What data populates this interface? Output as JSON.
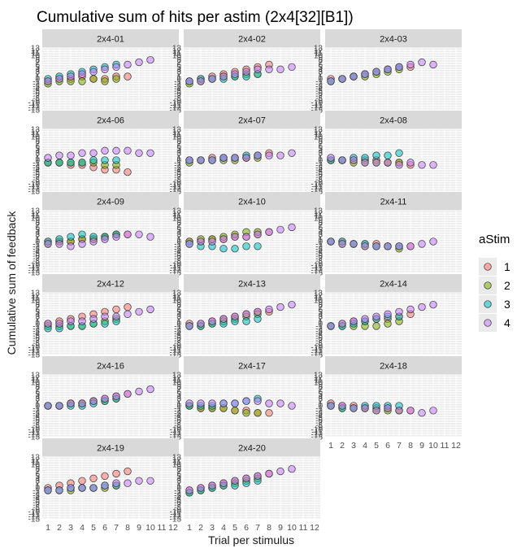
{
  "chart_data": {
    "type": "scatter",
    "title": "Cumulative sum of hits per astim (2x4[32][B1])",
    "xlabel": "Trial per stimulus",
    "ylabel": "Cumulative sum of feedback",
    "x_ticks": [
      "1",
      "2",
      "3",
      "4",
      "5",
      "6",
      "7",
      "8",
      "9",
      "10",
      "11",
      "12"
    ],
    "xlim": [
      0.5,
      12.5
    ],
    "ylim": [
      -13,
      13
    ],
    "y_ticks": [
      "-13",
      "-12",
      "-11",
      "-10",
      "-9",
      "-8",
      "-7",
      "-6",
      "-5",
      "-4",
      "-3",
      "-2",
      "-1",
      "0",
      "1",
      "2",
      "3",
      "4",
      "5",
      "6",
      "7",
      "8",
      "9",
      "10",
      "11",
      "12",
      "13"
    ],
    "legend": {
      "title": "aStim",
      "position": "right",
      "entries": [
        {
          "label": "1",
          "color": "#F8766D"
        },
        {
          "label": "2",
          "color": "#7CAE00"
        },
        {
          "label": "3",
          "color": "#00BFC4"
        },
        {
          "label": "4",
          "color": "#C77CFF"
        }
      ]
    },
    "facets": [
      {
        "label": "2x4-01",
        "series": [
          {
            "name": "1",
            "values": [
              -1,
              0,
              0,
              1,
              0,
              0,
              1,
              1
            ]
          },
          {
            "name": "2",
            "values": [
              -2,
              -1,
              -1,
              -1,
              0,
              -1,
              0
            ]
          },
          {
            "name": "3",
            "values": [
              0,
              1,
              2,
              3,
              4,
              5,
              6
            ]
          },
          {
            "name": "4",
            "values": [
              -1,
              0,
              1,
              2,
              3,
              4,
              5,
              6,
              7,
              8
            ]
          }
        ]
      },
      {
        "label": "2x4-02",
        "series": [
          {
            "name": "1",
            "values": [
              -1,
              0,
              1,
              2,
              3,
              4,
              5,
              6
            ]
          },
          {
            "name": "2",
            "values": [
              -2,
              -1,
              0,
              1,
              1,
              2,
              2
            ]
          },
          {
            "name": "3",
            "values": [
              -1,
              0,
              0,
              0,
              1,
              1,
              2
            ]
          },
          {
            "name": "4",
            "values": [
              -1,
              -1,
              0,
              1,
              2,
              3,
              4,
              4,
              4,
              5
            ]
          }
        ]
      },
      {
        "label": "2x4-03",
        "series": [
          {
            "name": "1",
            "values": [
              0,
              0,
              1,
              2,
              3,
              4,
              5,
              5
            ]
          },
          {
            "name": "2",
            "values": [
              -1,
              0,
              1,
              1,
              2,
              3,
              4
            ]
          },
          {
            "name": "3",
            "values": [
              -1,
              0,
              1,
              2,
              3,
              4,
              5
            ]
          },
          {
            "name": "4",
            "values": [
              -1,
              0,
              1,
              2,
              3,
              4,
              5,
              6,
              7,
              6
            ]
          }
        ]
      },
      {
        "label": "2x4-06",
        "series": [
          {
            "name": "1",
            "values": [
              -1,
              -1,
              -2,
              -2,
              -3,
              -4,
              -4,
              -5
            ]
          },
          {
            "name": "2",
            "values": [
              -1,
              -1,
              -1,
              -1,
              -1,
              -2,
              -2
            ]
          },
          {
            "name": "3",
            "values": [
              -1,
              -1,
              -1,
              -1,
              0,
              0,
              0
            ]
          },
          {
            "name": "4",
            "values": [
              1,
              2,
              2,
              3,
              3,
              4,
              4,
              4,
              3,
              3
            ]
          }
        ]
      },
      {
        "label": "2x4-07",
        "series": [
          {
            "name": "1",
            "values": [
              0,
              0,
              1,
              1,
              1,
              1,
              2,
              3
            ]
          },
          {
            "name": "2",
            "values": [
              -1,
              0,
              0,
              0,
              0,
              1,
              1
            ]
          },
          {
            "name": "3",
            "values": [
              0,
              0,
              0,
              1,
              1,
              2,
              2
            ]
          },
          {
            "name": "4",
            "values": [
              0,
              0,
              0,
              1,
              1,
              1,
              2,
              2,
              2,
              3
            ]
          }
        ]
      },
      {
        "label": "2x4-08",
        "series": [
          {
            "name": "1",
            "values": [
              0,
              0,
              0,
              0,
              0,
              -1,
              -1,
              -2
            ]
          },
          {
            "name": "2",
            "values": [
              0,
              0,
              -1,
              -1,
              -1,
              -1,
              -1
            ]
          },
          {
            "name": "3",
            "values": [
              0,
              0,
              1,
              1,
              2,
              2,
              3
            ]
          },
          {
            "name": "4",
            "values": [
              1,
              0,
              0,
              -1,
              -1,
              -1,
              -2,
              -1,
              -2,
              -2
            ]
          }
        ]
      },
      {
        "label": "2x4-09",
        "series": [
          {
            "name": "1",
            "values": [
              0,
              0,
              0,
              1,
              1,
              2,
              3,
              3
            ]
          },
          {
            "name": "2",
            "values": [
              -1,
              0,
              0,
              1,
              1,
              2,
              3
            ]
          },
          {
            "name": "3",
            "values": [
              0,
              1,
              2,
              3,
              2,
              2,
              3
            ]
          },
          {
            "name": "4",
            "values": [
              -1,
              -1,
              -2,
              -1,
              0,
              1,
              2,
              3,
              3,
              2
            ]
          }
        ]
      },
      {
        "label": "2x4-10",
        "series": [
          {
            "name": "1",
            "values": [
              0,
              0,
              1,
              1,
              2,
              2,
              3,
              4
            ]
          },
          {
            "name": "2",
            "values": [
              0,
              1,
              1,
              2,
              3,
              4,
              4
            ]
          },
          {
            "name": "3",
            "values": [
              -1,
              -2,
              -2,
              -3,
              -3,
              -2,
              -2
            ]
          },
          {
            "name": "4",
            "values": [
              -1,
              0,
              0,
              1,
              2,
              2,
              3,
              4,
              5,
              6
            ]
          }
        ]
      },
      {
        "label": "2x4-11",
        "series": [
          {
            "name": "1",
            "values": [
              0,
              0,
              -1,
              -1,
              -1,
              -2,
              -2,
              -2
            ]
          },
          {
            "name": "2",
            "values": [
              0,
              -1,
              -1,
              -2,
              -2,
              -2,
              -3
            ]
          },
          {
            "name": "3",
            "values": [
              0,
              0,
              -1,
              -1,
              -2,
              -2,
              -2
            ]
          },
          {
            "name": "4",
            "values": [
              0,
              -1,
              -1,
              -2,
              -2,
              -2,
              -2,
              -2,
              -1,
              0
            ]
          }
        ]
      },
      {
        "label": "2x4-12",
        "series": [
          {
            "name": "1",
            "values": [
              0,
              1,
              2,
              3,
              4,
              5,
              6,
              7
            ]
          },
          {
            "name": "2",
            "values": [
              -1,
              -1,
              -1,
              -1,
              0,
              1,
              2
            ]
          },
          {
            "name": "3",
            "values": [
              -2,
              -2,
              -1,
              -1,
              0,
              0,
              1
            ]
          },
          {
            "name": "4",
            "values": [
              0,
              0,
              1,
              1,
              2,
              3,
              3,
              4,
              5,
              6
            ]
          }
        ]
      },
      {
        "label": "2x4-13",
        "series": [
          {
            "name": "1",
            "values": [
              0,
              0,
              1,
              2,
              3,
              4,
              5,
              5
            ]
          },
          {
            "name": "2",
            "values": [
              -1,
              -1,
              0,
              1,
              2,
              3,
              4
            ]
          },
          {
            "name": "3",
            "values": [
              -1,
              -1,
              0,
              0,
              1,
              1,
              2
            ]
          },
          {
            "name": "4",
            "values": [
              -1,
              0,
              1,
              2,
              3,
              4,
              5,
              6,
              7,
              8
            ]
          }
        ]
      },
      {
        "label": "2x4-14",
        "series": [
          {
            "name": "1",
            "values": [
              -1,
              0,
              1,
              1,
              2,
              2,
              3,
              4
            ]
          },
          {
            "name": "2",
            "values": [
              -1,
              -1,
              -1,
              -1,
              -1,
              0,
              1
            ]
          },
          {
            "name": "3",
            "values": [
              -1,
              -1,
              0,
              1,
              2,
              3,
              3
            ]
          },
          {
            "name": "4",
            "values": [
              -1,
              0,
              1,
              2,
              3,
              4,
              5,
              6,
              7,
              8
            ]
          }
        ]
      },
      {
        "label": "2x4-16",
        "series": [
          {
            "name": "1",
            "values": [
              0,
              0,
              1,
              1,
              2,
              3,
              4,
              5
            ]
          },
          {
            "name": "2",
            "values": [
              0,
              0,
              1,
              1,
              2,
              2,
              3
            ]
          },
          {
            "name": "3",
            "values": [
              0,
              0,
              0,
              0,
              1,
              2,
              3
            ]
          },
          {
            "name": "4",
            "values": [
              0,
              0,
              1,
              1,
              2,
              3,
              4,
              5,
              6,
              7
            ]
          }
        ]
      },
      {
        "label": "2x4-17",
        "series": [
          {
            "name": "1",
            "values": [
              0,
              -1,
              -1,
              -1,
              -2,
              -2,
              -3,
              -3
            ]
          },
          {
            "name": "2",
            "values": [
              0,
              -1,
              -1,
              -1,
              -2,
              -3,
              -3
            ]
          },
          {
            "name": "3",
            "values": [
              0,
              0,
              0,
              1,
              1,
              2,
              3
            ]
          },
          {
            "name": "4",
            "values": [
              1,
              1,
              1,
              1,
              1,
              2,
              2,
              1,
              1,
              0
            ]
          }
        ]
      },
      {
        "label": "2x4-18",
        "series": [
          {
            "name": "1",
            "values": [
              1,
              0,
              0,
              -1,
              -1,
              -1,
              -2,
              -2
            ]
          },
          {
            "name": "2",
            "values": [
              0,
              -1,
              -1,
              -1,
              -2,
              -2,
              -2
            ]
          },
          {
            "name": "3",
            "values": [
              0,
              -1,
              -1,
              0,
              0,
              0,
              0
            ]
          },
          {
            "name": "4",
            "values": [
              0,
              0,
              -1,
              -1,
              -2,
              -1,
              -2,
              -2,
              -3,
              -2
            ]
          }
        ]
      },
      {
        "label": "2x4-19",
        "series": [
          {
            "name": "1",
            "values": [
              0,
              1,
              2,
              3,
              4,
              5,
              6,
              7
            ]
          },
          {
            "name": "2",
            "values": [
              -1,
              -1,
              -1,
              0,
              0,
              0,
              1
            ]
          },
          {
            "name": "3",
            "values": [
              -1,
              -1,
              0,
              0,
              0,
              1,
              1
            ]
          },
          {
            "name": "4",
            "values": [
              -1,
              -1,
              0,
              0,
              0,
              1,
              2,
              2,
              3,
              3
            ]
          }
        ]
      },
      {
        "label": "2x4-20",
        "series": [
          {
            "name": "1",
            "values": [
              -1,
              0,
              1,
              2,
              3,
              4,
              5,
              6
            ]
          },
          {
            "name": "2",
            "values": [
              -2,
              -1,
              0,
              1,
              2,
              3,
              4
            ]
          },
          {
            "name": "3",
            "values": [
              -2,
              -1,
              0,
              1,
              1,
              2,
              3
            ]
          },
          {
            "name": "4",
            "values": [
              -1,
              0,
              1,
              2,
              3,
              4,
              5,
              6,
              7,
              8
            ]
          }
        ]
      }
    ]
  }
}
